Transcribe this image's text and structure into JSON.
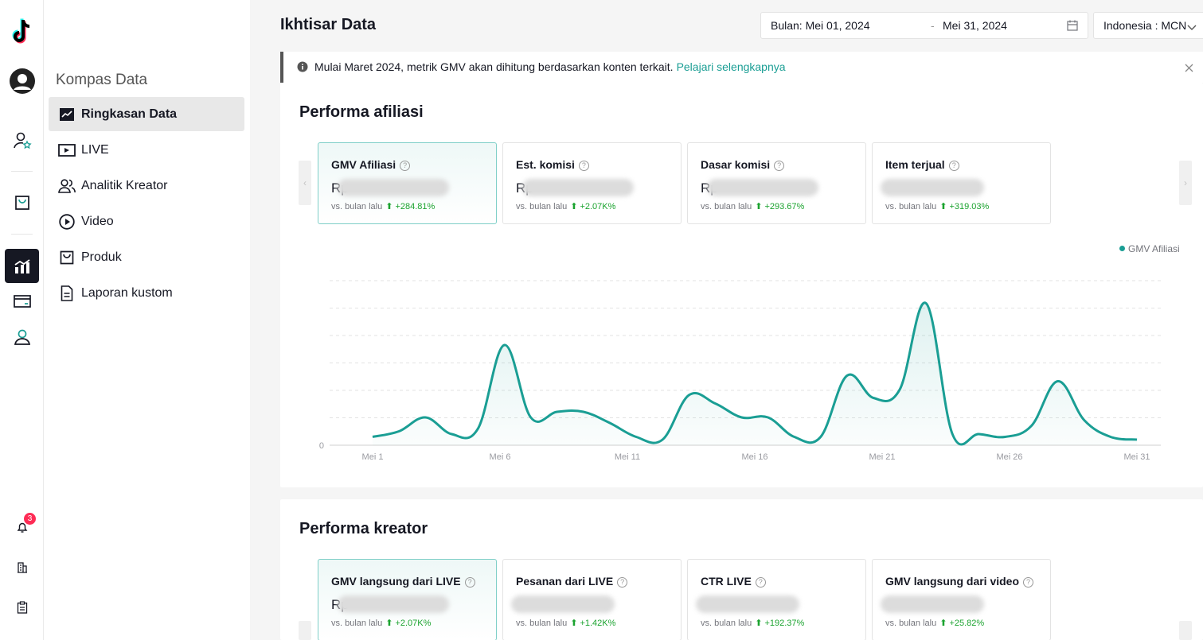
{
  "rail": {
    "badge_count": "3"
  },
  "sidenav": {
    "title": "Kompas Data",
    "items": [
      {
        "label": "Ringkasan Data"
      },
      {
        "label": "LIVE"
      },
      {
        "label": "Analitik Kreator"
      },
      {
        "label": "Video"
      },
      {
        "label": "Produk"
      },
      {
        "label": "Laporan kustom"
      }
    ]
  },
  "header": {
    "title": "Ikhtisar Data",
    "date_start": "Bulan: Mei 01, 2024",
    "date_sep": "-",
    "date_end": "Mei 31, 2024",
    "region": "Indonesia : MCN"
  },
  "notice": {
    "text": "Mulai Maret 2024, metrik GMV akan dihitung berdasarkan konten terkait.",
    "link": "Pelajari selengkapnya"
  },
  "affiliate": {
    "title": "Performa afiliasi",
    "cards": [
      {
        "title": "GMV Afiliasi",
        "value_prefix": "Rp",
        "compare": "vs. bulan lalu",
        "change": "+284.81%"
      },
      {
        "title": "Est. komisi",
        "value_prefix": "Rp",
        "compare": "vs. bulan lalu",
        "change": "+2.07K%"
      },
      {
        "title": "Dasar komisi",
        "value_prefix": "Rp",
        "compare": "vs. bulan lalu",
        "change": "+293.67%"
      },
      {
        "title": "Item terjual",
        "value_prefix": "",
        "compare": "vs. bulan lalu",
        "change": "+319.03%"
      }
    ]
  },
  "creator": {
    "title": "Performa kreator",
    "cards": [
      {
        "title": "GMV langsung dari LIVE",
        "value_prefix": "Rp",
        "compare": "vs. bulan lalu",
        "change": "+2.07K%"
      },
      {
        "title": "Pesanan dari LIVE",
        "value_prefix": "",
        "compare": "vs. bulan lalu",
        "change": "+1.42K%"
      },
      {
        "title": "CTR LIVE",
        "value_prefix": "",
        "compare": "vs. bulan lalu",
        "change": "+192.37%"
      },
      {
        "title": "GMV langsung dari video",
        "value_prefix": "",
        "compare": "vs. bulan lalu",
        "change": "+25.82%"
      }
    ]
  },
  "chart_data": {
    "type": "area",
    "series": [
      {
        "name": "GMV Afiliasi",
        "color": "#1a9e94",
        "values": [
          3,
          5,
          10,
          4,
          6,
          36,
          10,
          12,
          12,
          8,
          3,
          2,
          18,
          15,
          10,
          10,
          3,
          3,
          25,
          17,
          20,
          51,
          4,
          4,
          3,
          7,
          23,
          9,
          3,
          2
        ]
      }
    ],
    "x": [
      "Mei 1",
      "Mei 2",
      "Mei 3",
      "Mei 4",
      "Mei 5",
      "Mei 6",
      "Mei 7",
      "Mei 8",
      "Mei 9",
      "Mei 10",
      "Mei 11",
      "Mei 12",
      "Mei 13",
      "Mei 14",
      "Mei 15",
      "Mei 16",
      "Mei 17",
      "Mei 18",
      "Mei 19",
      "Mei 20",
      "Mei 21",
      "Mei 22",
      "Mei 23",
      "Mei 24",
      "Mei 25",
      "Mei 26",
      "Mei 27",
      "Mei 28",
      "Mei 29",
      "Mei 31"
    ],
    "xticks": [
      "Mei 1",
      "Mei 6",
      "Mei 11",
      "Mei 16",
      "Mei 21",
      "Mei 26",
      "Mei 31"
    ],
    "yticks": [
      "0"
    ],
    "ylim": [
      0,
      60
    ],
    "grid": true,
    "legend": "top-right"
  }
}
